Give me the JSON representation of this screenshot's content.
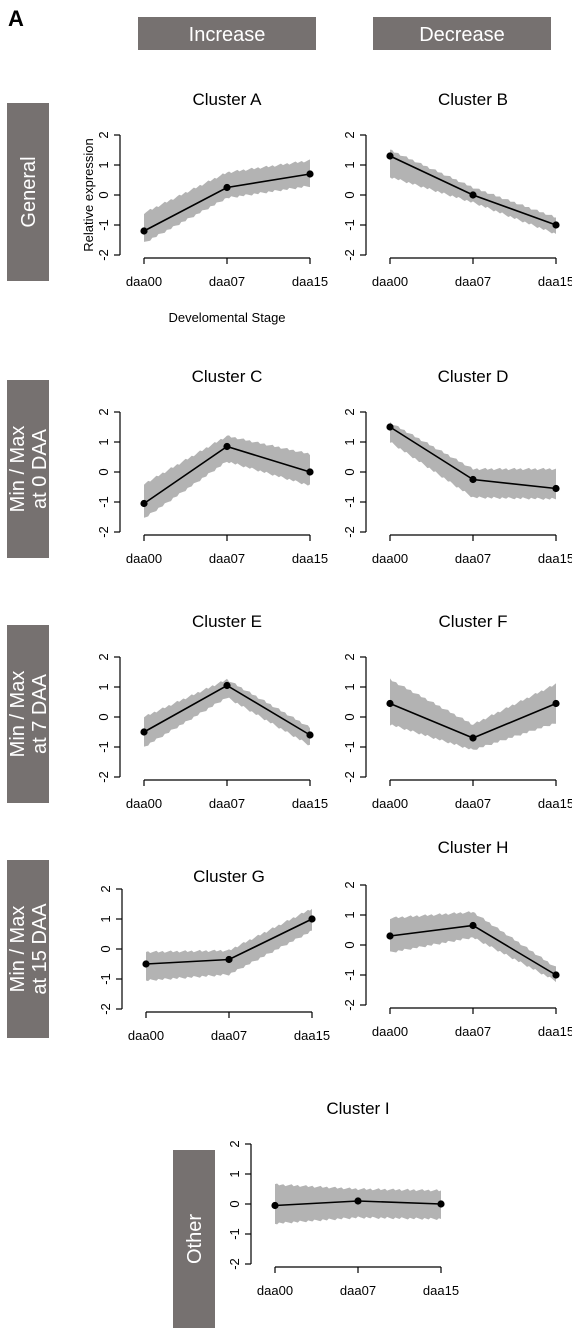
{
  "panel_label": "A",
  "column_headers": [
    "Increase",
    "Decrease"
  ],
  "row_labels": [
    [
      "General"
    ],
    [
      "Min / Max",
      "at 0 DAA"
    ],
    [
      "Min / Max",
      "at 7 DAA"
    ],
    [
      "Min / Max",
      "at 15 DAA"
    ],
    [
      "Other"
    ]
  ],
  "colors": {
    "header_box": "#767170",
    "band": "#b3b3b3",
    "line": "#000000"
  },
  "chart_data": [
    {
      "type": "line",
      "title": "Cluster A",
      "xlabel": "Develomental Stage",
      "ylabel": "Relative expression",
      "categories": [
        "daa00",
        "daa07",
        "daa15"
      ],
      "yticks": [
        "2",
        "1",
        "0",
        "-1",
        "-2"
      ],
      "ylim": [
        -2,
        2
      ],
      "values": [
        -1.2,
        0.25,
        0.7
      ],
      "band_upper": [
        -0.6,
        0.75,
        1.15
      ],
      "band_lower": [
        -1.6,
        -0.1,
        0.3
      ]
    },
    {
      "type": "line",
      "title": "Cluster B",
      "xlabel": "",
      "ylabel": "",
      "categories": [
        "daa00",
        "daa07",
        "daa15"
      ],
      "yticks": [
        "2",
        "1",
        "0",
        "-1",
        "-2"
      ],
      "ylim": [
        -2,
        2
      ],
      "values": [
        1.3,
        0.0,
        -1.0
      ],
      "band_upper": [
        1.5,
        0.25,
        -0.75
      ],
      "band_lower": [
        0.6,
        -0.25,
        -1.3
      ]
    },
    {
      "type": "line",
      "title": "Cluster C",
      "xlabel": "",
      "ylabel": "",
      "categories": [
        "daa00",
        "daa07",
        "daa15"
      ],
      "yticks": [
        "2",
        "1",
        "0",
        "-1",
        "-2"
      ],
      "ylim": [
        -2,
        2
      ],
      "values": [
        -1.05,
        0.85,
        0.0
      ],
      "band_upper": [
        -0.4,
        1.2,
        0.6
      ],
      "band_lower": [
        -1.55,
        0.35,
        -0.45
      ]
    },
    {
      "type": "line",
      "title": "Cluster D",
      "xlabel": "",
      "ylabel": "",
      "categories": [
        "daa00",
        "daa07",
        "daa15"
      ],
      "yticks": [
        "2",
        "1",
        "0",
        "-1",
        "-2"
      ],
      "ylim": [
        -2,
        2
      ],
      "values": [
        1.5,
        -0.25,
        -0.55
      ],
      "band_upper": [
        1.65,
        0.1,
        0.1
      ],
      "band_lower": [
        1.0,
        -0.85,
        -0.9
      ]
    },
    {
      "type": "line",
      "title": "Cluster E",
      "xlabel": "",
      "ylabel": "",
      "categories": [
        "daa00",
        "daa07",
        "daa15"
      ],
      "yticks": [
        "2",
        "1",
        "0",
        "-1",
        "-2"
      ],
      "ylim": [
        -2,
        2
      ],
      "values": [
        -0.5,
        1.05,
        -0.6
      ],
      "band_upper": [
        0.0,
        1.25,
        -0.35
      ],
      "band_lower": [
        -1.0,
        0.65,
        -0.95
      ]
    },
    {
      "type": "line",
      "title": "Cluster F",
      "xlabel": "",
      "ylabel": "",
      "categories": [
        "daa00",
        "daa07",
        "daa15"
      ],
      "yticks": [
        "2",
        "1",
        "0",
        "-1",
        "-2"
      ],
      "ylim": [
        -2,
        2
      ],
      "values": [
        0.45,
        -0.7,
        0.45
      ],
      "band_upper": [
        1.25,
        -0.25,
        1.1
      ],
      "band_lower": [
        -0.25,
        -1.1,
        -0.2
      ]
    },
    {
      "type": "line",
      "title": "Cluster G",
      "xlabel": "",
      "ylabel": "",
      "categories": [
        "daa00",
        "daa07",
        "daa15"
      ],
      "yticks": [
        "2",
        "1",
        "0",
        "-1",
        "-2"
      ],
      "ylim": [
        -2,
        2
      ],
      "values": [
        -0.5,
        -0.35,
        1.0
      ],
      "band_upper": [
        -0.1,
        -0.05,
        1.35
      ],
      "band_lower": [
        -1.05,
        -0.85,
        0.6
      ]
    },
    {
      "type": "line",
      "title": "Cluster H",
      "xlabel": "",
      "ylabel": "",
      "categories": [
        "daa00",
        "daa07",
        "daa15"
      ],
      "yticks": [
        "2",
        "1",
        "0",
        "-1",
        "-2"
      ],
      "ylim": [
        -2,
        2
      ],
      "values": [
        0.3,
        0.65,
        -1.0
      ],
      "band_upper": [
        0.9,
        1.1,
        -0.75
      ],
      "band_lower": [
        -0.25,
        0.25,
        -1.2
      ]
    },
    {
      "type": "line",
      "title": "Cluster I",
      "xlabel": "",
      "ylabel": "",
      "categories": [
        "daa00",
        "daa07",
        "daa15"
      ],
      "yticks": [
        "2",
        "1",
        "0",
        "-1",
        "-2"
      ],
      "ylim": [
        -2,
        2
      ],
      "values": [
        -0.05,
        0.1,
        0.0
      ],
      "band_upper": [
        0.65,
        0.5,
        0.45
      ],
      "band_lower": [
        -0.65,
        -0.45,
        -0.5
      ]
    }
  ]
}
